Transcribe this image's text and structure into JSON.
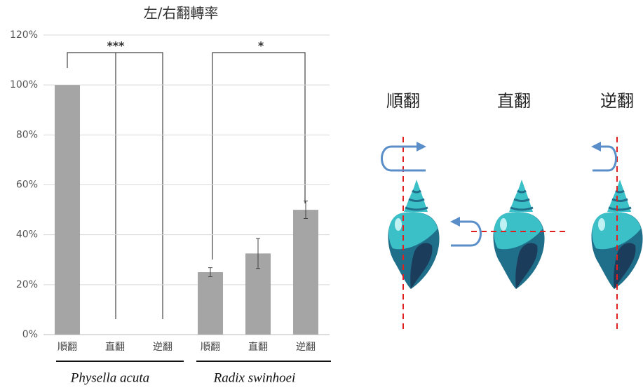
{
  "chart_data": {
    "type": "bar",
    "title": "左/右翻轉率",
    "categories": [
      "順翻",
      "直翻",
      "逆翻",
      "順翻",
      "直翻",
      "逆翻"
    ],
    "values": [
      100,
      0,
      0,
      25,
      32.5,
      50
    ],
    "errors": [
      0,
      0,
      0,
      1.8,
      6,
      3.5
    ],
    "color": "#a5a5a5",
    "groups": [
      "Physella acuta",
      "Radix swinhoei"
    ],
    "significance": [
      "***",
      "*"
    ],
    "ylim": [
      0,
      120
    ],
    "yticks": [
      {
        "value": 0,
        "label": "0%"
      },
      {
        "value": 20,
        "label": "20%"
      },
      {
        "value": 40,
        "label": "40%"
      },
      {
        "value": 60,
        "label": "60%"
      },
      {
        "value": 80,
        "label": "80%"
      },
      {
        "value": 100,
        "label": "100%"
      },
      {
        "value": 120,
        "label": "120%"
      }
    ],
    "grid": true
  },
  "diagram": {
    "labels": [
      "順翻",
      "直翻",
      "逆翻"
    ]
  }
}
